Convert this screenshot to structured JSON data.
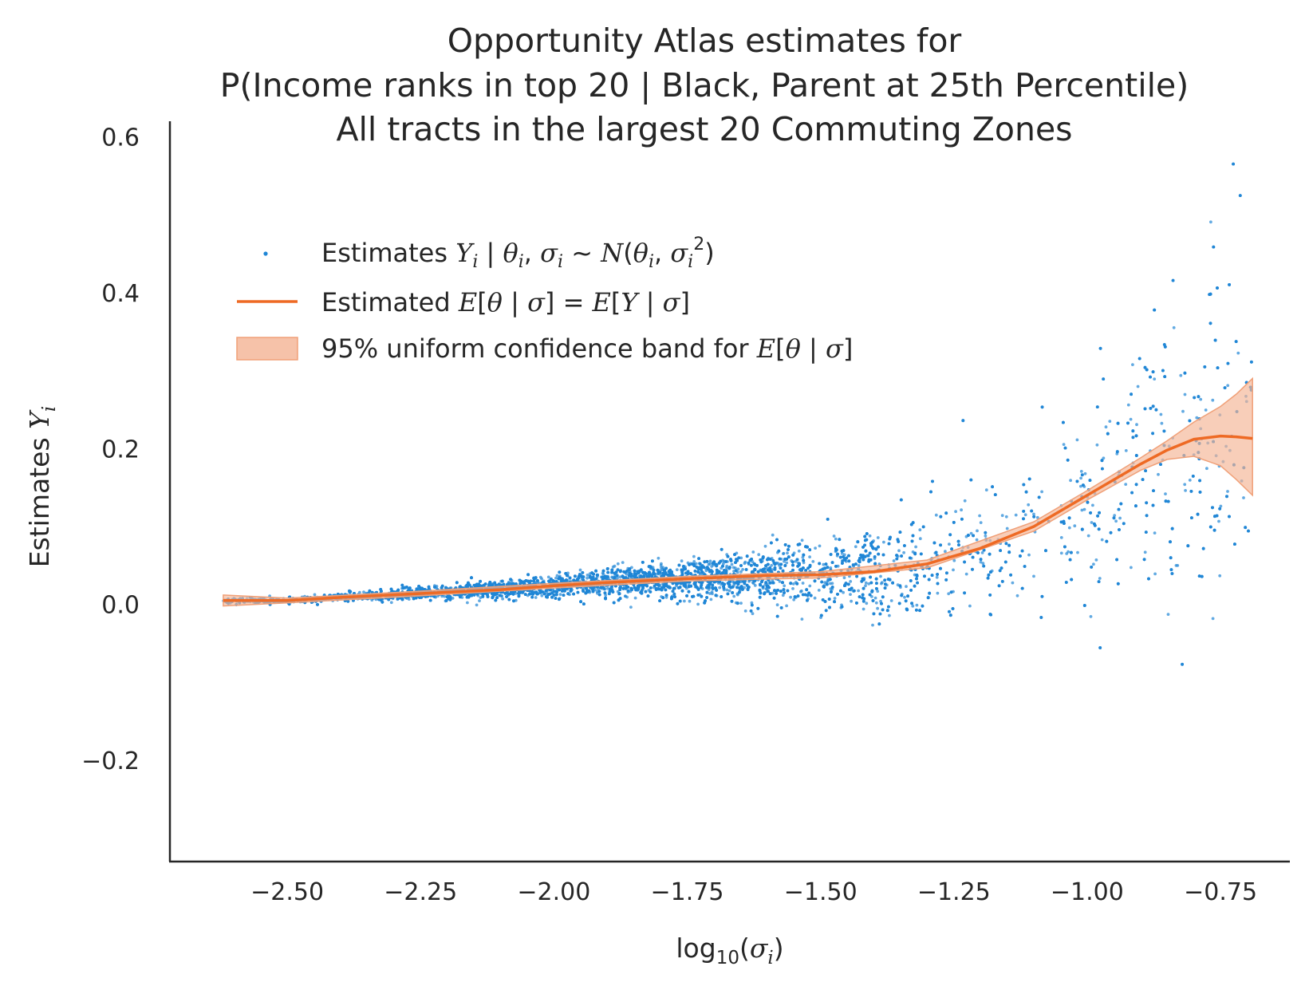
{
  "colors": {
    "points": "#1f86d6",
    "line": "#ee6a24",
    "band": "#f4b394",
    "axis": "#262626"
  },
  "chart_data": {
    "type": "scatter",
    "title": [
      "Opportunity Atlas estimates for",
      "P(Income ranks in top 20 | Black, Parent at 25th Percentile)",
      "All tracts in the largest 20 Commuting Zones"
    ],
    "xlabel": "log10(σi)",
    "ylabel": "Estimates Yi",
    "xlim": [
      -2.72,
      -0.62
    ],
    "ylim": [
      -0.33,
      0.62
    ],
    "x_ticks": [
      -2.5,
      -2.25,
      -2.0,
      -1.75,
      -1.5,
      -1.25,
      -1.0,
      -0.75
    ],
    "x_tick_labels": [
      "−2.50",
      "−2.25",
      "−2.00",
      "−1.75",
      "−1.50",
      "−1.25",
      "−1.00",
      "−0.75"
    ],
    "y_ticks": [
      -0.2,
      0.0,
      0.2,
      0.4,
      0.6
    ],
    "y_tick_labels": [
      "−0.2",
      "0.0",
      "0.2",
      "0.4",
      "0.6"
    ],
    "grid": false,
    "legend_position": "upper-left",
    "legend": [
      "Estimates Yi | θi, σi ~ N(θi, σi²)",
      "Estimated E[θ | σ] = E[Y | σ]",
      "95% uniform confidence band for E[θ | σ]"
    ],
    "scatter_model": {
      "description": "~10000 tract estimates; dense cloud whose spread grows with σ",
      "x_range": [
        -2.62,
        -0.69
      ],
      "n_points": 9000
    },
    "series": [
      {
        "name": "Estimated E[θ | σ] = E[Y | σ]",
        "type": "line",
        "x": [
          -2.62,
          -2.5,
          -2.4,
          -2.25,
          -2.1,
          -2.0,
          -1.9,
          -1.75,
          -1.6,
          -1.5,
          -1.4,
          -1.3,
          -1.2,
          -1.1,
          -1.0,
          -0.9,
          -0.85,
          -0.8,
          -0.75,
          -0.72,
          -0.69
        ],
        "y": [
          0.005,
          0.005,
          0.009,
          0.014,
          0.019,
          0.024,
          0.028,
          0.033,
          0.037,
          0.038,
          0.042,
          0.052,
          0.072,
          0.1,
          0.14,
          0.18,
          0.198,
          0.212,
          0.216,
          0.215,
          0.213
        ]
      },
      {
        "name": "95% uniform confidence band for E[θ | σ]",
        "type": "band",
        "x": [
          -2.62,
          -2.5,
          -2.25,
          -2.0,
          -1.75,
          -1.5,
          -1.3,
          -1.1,
          -1.0,
          -0.9,
          -0.85,
          -0.8,
          -0.75,
          -0.72,
          -0.69
        ],
        "lower": [
          -0.002,
          0.002,
          0.011,
          0.021,
          0.03,
          0.034,
          0.047,
          0.094,
          0.134,
          0.172,
          0.186,
          0.19,
          0.178,
          0.16,
          0.14
        ],
        "upper": [
          0.012,
          0.008,
          0.017,
          0.027,
          0.036,
          0.042,
          0.057,
          0.106,
          0.146,
          0.188,
          0.21,
          0.234,
          0.254,
          0.27,
          0.29
        ]
      }
    ]
  }
}
